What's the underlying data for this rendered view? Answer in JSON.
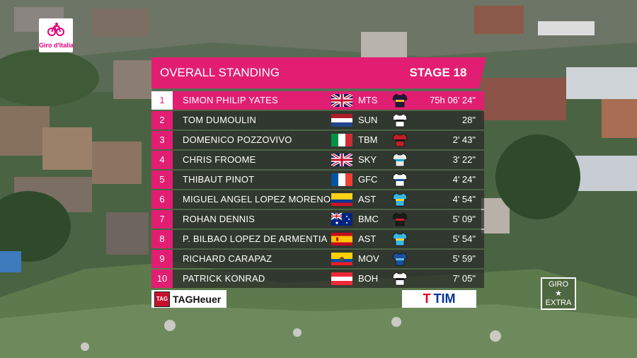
{
  "broadcast": {
    "logo_text": "Giro d'Italia",
    "title": "OVERALL STANDING",
    "stage": "STAGE 18",
    "sponsors": {
      "left_badge": "TAG",
      "left": "TAGHeuer",
      "right": "TIM"
    },
    "extra_top": "GIRO",
    "extra_star": "★",
    "extra_bottom": "EXTRA",
    "accent_color": "#e21e72"
  },
  "standings": [
    {
      "pos": "1",
      "name": "SIMON PHILIP YATES",
      "flag": "gb-flag-icon",
      "team": "MTS",
      "jersey": "mitchelton-jersey-icon",
      "time": "75h 06' 24\""
    },
    {
      "pos": "2",
      "name": "TOM DUMOULIN",
      "flag": "nl-flag-icon",
      "team": "SUN",
      "jersey": "sunweb-jersey-icon",
      "time": "28\""
    },
    {
      "pos": "3",
      "name": "DOMENICO POZZOVIVO",
      "flag": "it-flag-icon",
      "team": "TBM",
      "jersey": "bahrain-jersey-icon",
      "time": "2' 43\""
    },
    {
      "pos": "4",
      "name": "CHRIS FROOME",
      "flag": "gb-flag-icon",
      "team": "SKY",
      "jersey": "sky-jersey-icon",
      "time": "3' 22\""
    },
    {
      "pos": "5",
      "name": "THIBAUT PINOT",
      "flag": "fr-flag-icon",
      "team": "GFC",
      "jersey": "fdj-jersey-icon",
      "time": "4' 24\""
    },
    {
      "pos": "6",
      "name": "MIGUEL ANGEL LOPEZ MORENO",
      "flag": "co-flag-icon",
      "team": "AST",
      "jersey": "astana-jersey-icon",
      "time": "4' 54\""
    },
    {
      "pos": "7",
      "name": "ROHAN DENNIS",
      "flag": "au-flag-icon",
      "team": "BMC",
      "jersey": "bmc-jersey-icon",
      "time": "5' 09\""
    },
    {
      "pos": "8",
      "name": "P. BILBAO LOPEZ DE ARMENTIA",
      "flag": "es-flag-icon",
      "team": "AST",
      "jersey": "astana-jersey-icon",
      "time": "5' 54\""
    },
    {
      "pos": "9",
      "name": "RICHARD CARAPAZ",
      "flag": "ec-flag-icon",
      "team": "MOV",
      "jersey": "movistar-jersey-icon",
      "time": "5' 59\""
    },
    {
      "pos": "10",
      "name": "PATRICK KONRAD",
      "flag": "at-flag-icon",
      "team": "BOH",
      "jersey": "bora-jersey-icon",
      "time": "7' 05\""
    }
  ]
}
